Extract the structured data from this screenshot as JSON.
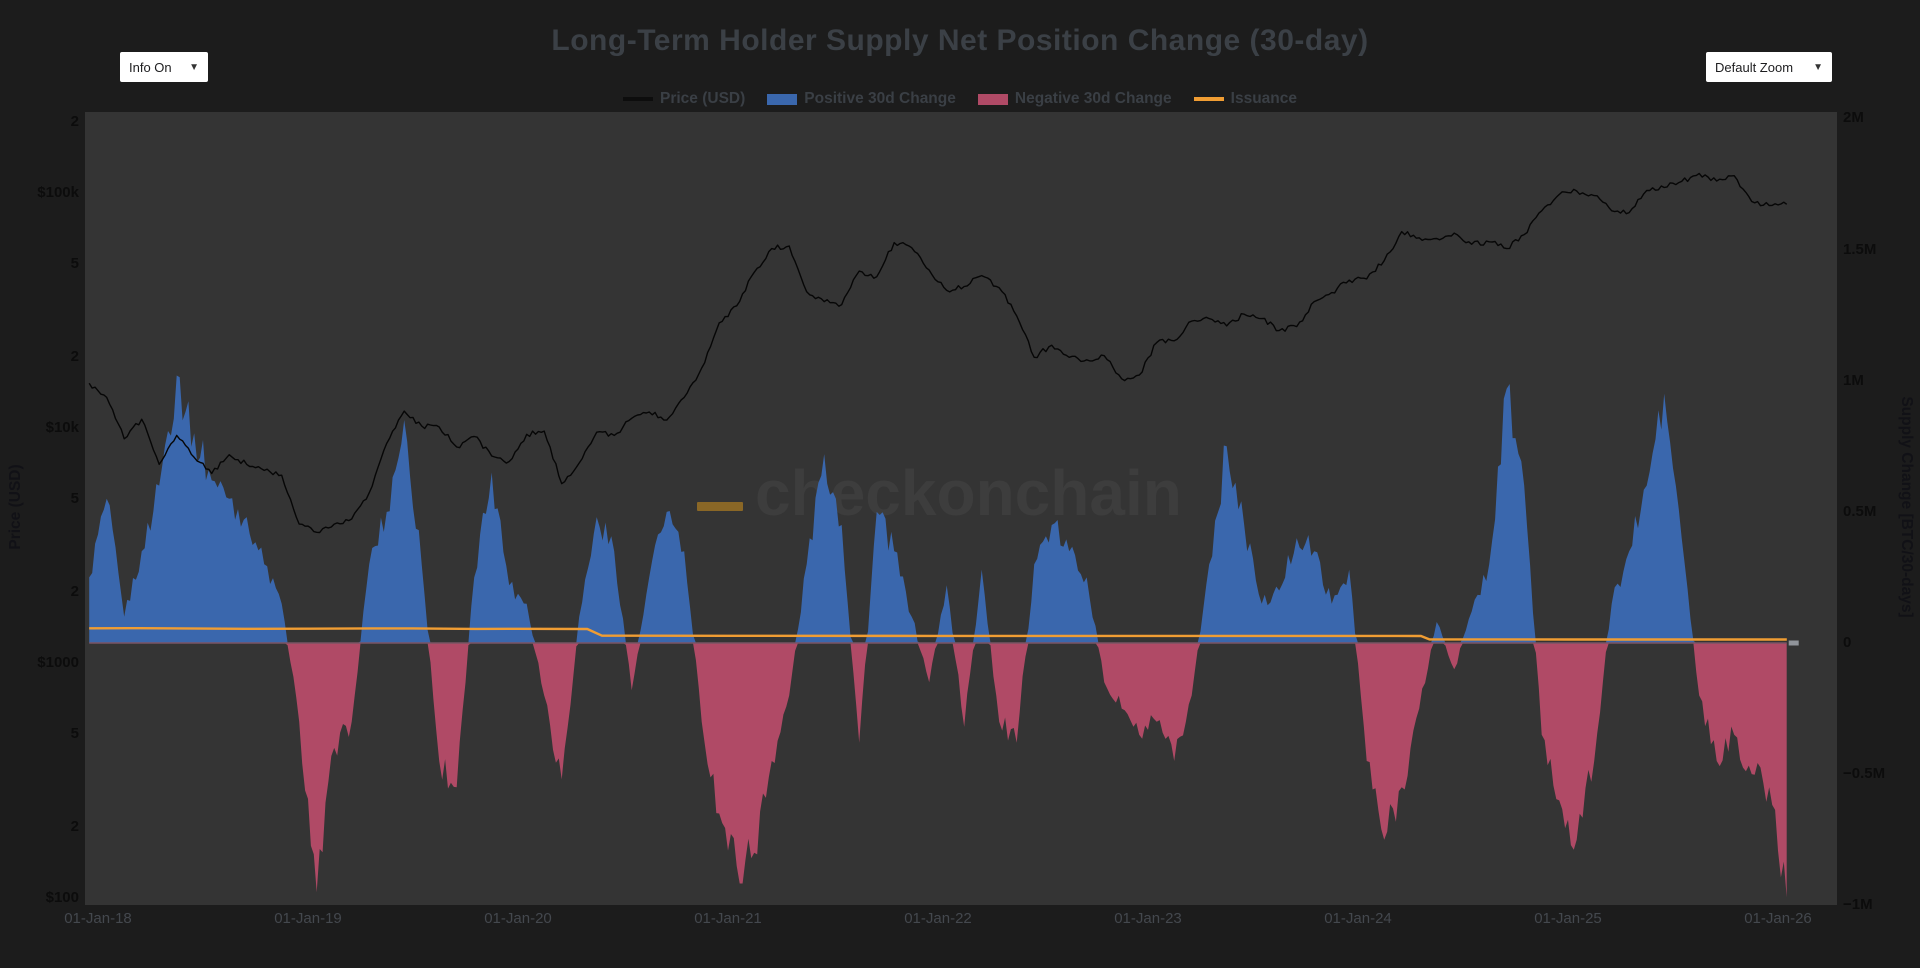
{
  "header": {
    "title": "Long-Term Holder Supply Net Position Change (30-day)",
    "info_dropdown": {
      "label": "Info On",
      "caret": "▼"
    },
    "zoom_dropdown": {
      "label": "Default Zoom",
      "caret": "▼"
    }
  },
  "legend": {
    "items": [
      {
        "label": "Price (USD)",
        "swatch": "line",
        "color": "#0d0d0d"
      },
      {
        "label": "Positive 30d Change",
        "swatch": "fill",
        "color": "#3a67ad"
      },
      {
        "label": "Negative 30d Change",
        "swatch": "fill",
        "color": "#b04a66"
      },
      {
        "label": "Issuance",
        "swatch": "line",
        "color": "#f09d33"
      }
    ]
  },
  "watermark": {
    "text": "checkonchain",
    "dash_color": "#8a6726",
    "text_color": "#3d3d3d"
  },
  "colors": {
    "page_bg": "#1c1c1c",
    "plot_bg": "#343434",
    "positive": "#3a67ad",
    "negative": "#b04a66",
    "issuance": "#f09d33",
    "price_line": "#060606",
    "zero_line": "#7a5464"
  },
  "chart_data": {
    "type": "area",
    "title": "Long-Term Holder Supply Net Position Change (30-day)",
    "x_axis": {
      "tick_labels": [
        "01-Jan-18",
        "01-Jan-19",
        "01-Jan-20",
        "01-Jan-21",
        "01-Jan-22",
        "01-Jan-23",
        "01-Jan-24",
        "01-Jan-25",
        "01-Jan-26"
      ],
      "tick_years": [
        2018,
        2019,
        2020,
        2021,
        2022,
        2023,
        2024,
        2025,
        2026
      ],
      "range_years": [
        2017.94,
        2026.28
      ]
    },
    "y_left": {
      "label": "Price (USD)",
      "scale": "log",
      "ticks": [
        {
          "label": "2",
          "value": 200000
        },
        {
          "label": "$100k",
          "value": 100000
        },
        {
          "label": "5",
          "value": 50000
        },
        {
          "label": "2",
          "value": 20000
        },
        {
          "label": "$10k",
          "value": 10000
        },
        {
          "label": "5",
          "value": 5000
        },
        {
          "label": "2",
          "value": 2000
        },
        {
          "label": "$1000",
          "value": 1000
        },
        {
          "label": "5",
          "value": 500
        },
        {
          "label": "2",
          "value": 200
        },
        {
          "label": "$100",
          "value": 100
        }
      ]
    },
    "y_right": {
      "label": "Supply Change [BTC/30-days]",
      "scale": "linear",
      "ticks": [
        {
          "label": "2M",
          "value": 2
        },
        {
          "label": "1.5M",
          "value": 1.5
        },
        {
          "label": "1M",
          "value": 1
        },
        {
          "label": "0.5M",
          "value": 0.5
        },
        {
          "label": "0",
          "value": 0
        },
        {
          "label": "−0.5M",
          "value": -0.5
        },
        {
          "label": "−1M",
          "value": -1
        }
      ],
      "range": [
        -1.1,
        2.03
      ]
    },
    "series": [
      {
        "name": "Price (USD)",
        "type": "line",
        "axis": "left",
        "color": "#060606",
        "x_start": 2017.9583,
        "x_step": 0.0833333,
        "units": "USD (thousands)",
        "values": [
          15.5,
          13.5,
          9.0,
          10.9,
          7.0,
          9.3,
          7.5,
          6.4,
          7.7,
          7.0,
          6.6,
          6.3,
          3.9,
          3.6,
          3.9,
          4.1,
          5.3,
          8.6,
          11.8,
          10.2,
          10.1,
          8.3,
          9.2,
          7.6,
          7.2,
          9.4,
          9.7,
          5.8,
          7.1,
          9.6,
          9.3,
          11.0,
          11.7,
          10.8,
          13.5,
          18.0,
          28.0,
          33.1,
          46.0,
          58.0,
          59.5,
          38.0,
          34.5,
          33.5,
          46.5,
          44.0,
          61.5,
          58.5,
          47.0,
          38.5,
          40.0,
          44.5,
          39.5,
          30.0,
          20.0,
          22.5,
          20.0,
          19.5,
          20.3,
          16.2,
          16.8,
          23.1,
          23.5,
          28.5,
          29.2,
          27.2,
          30.5,
          29.2,
          26.0,
          27.0,
          34.5,
          37.7,
          42.6,
          43.1,
          51.5,
          68.5,
          64.5,
          64.0,
          67.5,
          60.5,
          62.0,
          58.0,
          66.5,
          84.0,
          98.5,
          102.0,
          97.5,
          84.0,
          82.5,
          102.5,
          105.5,
          112.0,
          121.0,
          112.5,
          118.5,
          92.0,
          88.5,
          89.5
        ]
      },
      {
        "name": "LTH Supply Net Position Change (30d)",
        "type": "area",
        "axis": "right",
        "positive_color": "#3a67ad",
        "negative_color": "#b04a66",
        "x_start": 2017.9583,
        "x_step": 0.0833333,
        "units": "Million BTC / 30 days",
        "values": [
          0.25,
          0.55,
          0.1,
          0.35,
          0.6,
          1.02,
          0.8,
          0.62,
          0.55,
          0.48,
          0.3,
          0.15,
          -0.3,
          -0.95,
          -0.4,
          -0.3,
          0.3,
          0.5,
          0.85,
          0.3,
          -0.45,
          -0.55,
          0.25,
          0.65,
          0.22,
          0.15,
          -0.2,
          -0.52,
          0.1,
          0.48,
          0.35,
          -0.18,
          0.25,
          0.5,
          0.35,
          -0.3,
          -0.65,
          -0.85,
          -0.8,
          -0.45,
          -0.2,
          0.3,
          0.72,
          0.45,
          -0.38,
          0.5,
          0.35,
          0.1,
          -0.15,
          0.22,
          -0.32,
          0.28,
          -0.3,
          -0.38,
          0.3,
          0.45,
          0.35,
          0.25,
          -0.15,
          -0.25,
          -0.35,
          -0.3,
          -0.45,
          -0.2,
          0.3,
          0.75,
          0.45,
          0.15,
          0.2,
          0.4,
          0.35,
          0.15,
          0.28,
          -0.45,
          -0.75,
          -0.55,
          -0.25,
          0.08,
          -0.1,
          0.12,
          0.3,
          0.97,
          0.6,
          -0.35,
          -0.6,
          -0.75,
          -0.45,
          0.15,
          0.35,
          0.6,
          0.95,
          0.4,
          -0.2,
          -0.45,
          -0.35,
          -0.5,
          -0.55,
          -0.97
        ]
      },
      {
        "name": "Issuance",
        "type": "line",
        "axis": "right",
        "color": "#f09d33",
        "units": "Million BTC / 30 days",
        "x": [
          2017.9583,
          2018.2,
          2018.5,
          2018.7,
          2019.0,
          2019.3,
          2019.5,
          2019.8,
          2020.0,
          2020.33,
          2020.4,
          2021.0,
          2022.0,
          2023.0,
          2024.0,
          2024.3,
          2024.34,
          2025.0,
          2025.5,
          2026.0417
        ],
        "y": [
          0.056,
          0.0565,
          0.055,
          0.0542,
          0.0545,
          0.0558,
          0.0555,
          0.0538,
          0.054,
          0.0535,
          0.028,
          0.0275,
          0.027,
          0.0272,
          0.027,
          0.0268,
          0.0136,
          0.0135,
          0.0134,
          0.0135
        ]
      }
    ]
  }
}
